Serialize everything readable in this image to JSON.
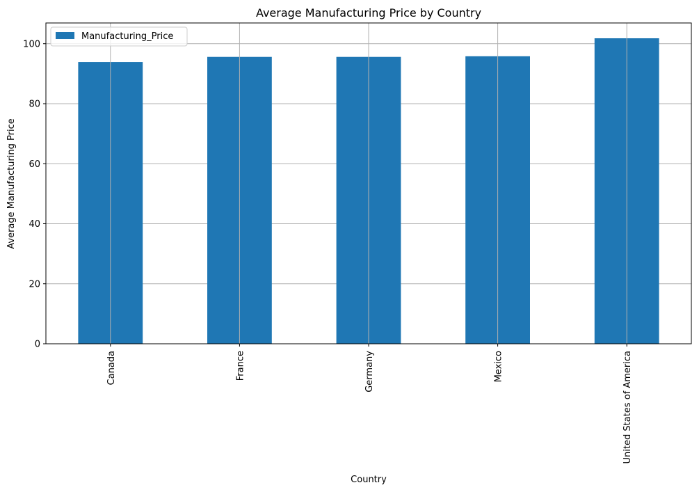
{
  "chart_data": {
    "type": "bar",
    "title": "Average Manufacturing Price by Country",
    "xlabel": "Country",
    "ylabel": "Average Manufacturing Price",
    "categories": [
      "Canada",
      "France",
      "Germany",
      "Mexico",
      "United States of America"
    ],
    "series": [
      {
        "name": "Manufacturing_Price",
        "values": [
          93.9,
          95.6,
          95.6,
          95.8,
          101.8
        ],
        "color": "#1f77b4"
      }
    ],
    "yticks": [
      0,
      20,
      40,
      60,
      80,
      100
    ],
    "ylim": [
      0,
      106.9
    ],
    "grid": true,
    "legend": "top-left"
  }
}
